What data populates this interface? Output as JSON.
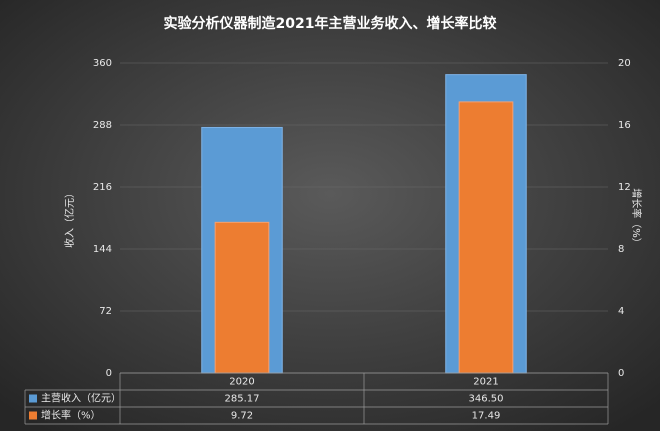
{
  "chart_data": {
    "type": "bar",
    "title": "实验分析仪器制造2021年主营业务收入、增长率比较",
    "y_label": "收入（亿元）",
    "y2_label": "增长率（%）",
    "categories": [
      "2020",
      "2021"
    ],
    "series": [
      {
        "name": "主营收入（亿元）",
        "color": "#5b9bd5",
        "values": [
          285.17,
          346.5
        ],
        "value_labels": [
          "285.17",
          "346.50"
        ]
      },
      {
        "name": "增长率（%）",
        "color": "#ed7d31",
        "axis": "y2",
        "values": [
          9.72,
          17.49
        ],
        "value_labels": [
          "9.72",
          "17.49"
        ]
      }
    ],
    "ylim": [
      0,
      360
    ],
    "yticks": [
      0,
      72,
      144,
      216,
      288,
      360
    ],
    "y2lim": [
      0,
      20
    ],
    "y2ticks": [
      0,
      4,
      8,
      12,
      16,
      20
    ],
    "grid": true,
    "data_table": true
  }
}
